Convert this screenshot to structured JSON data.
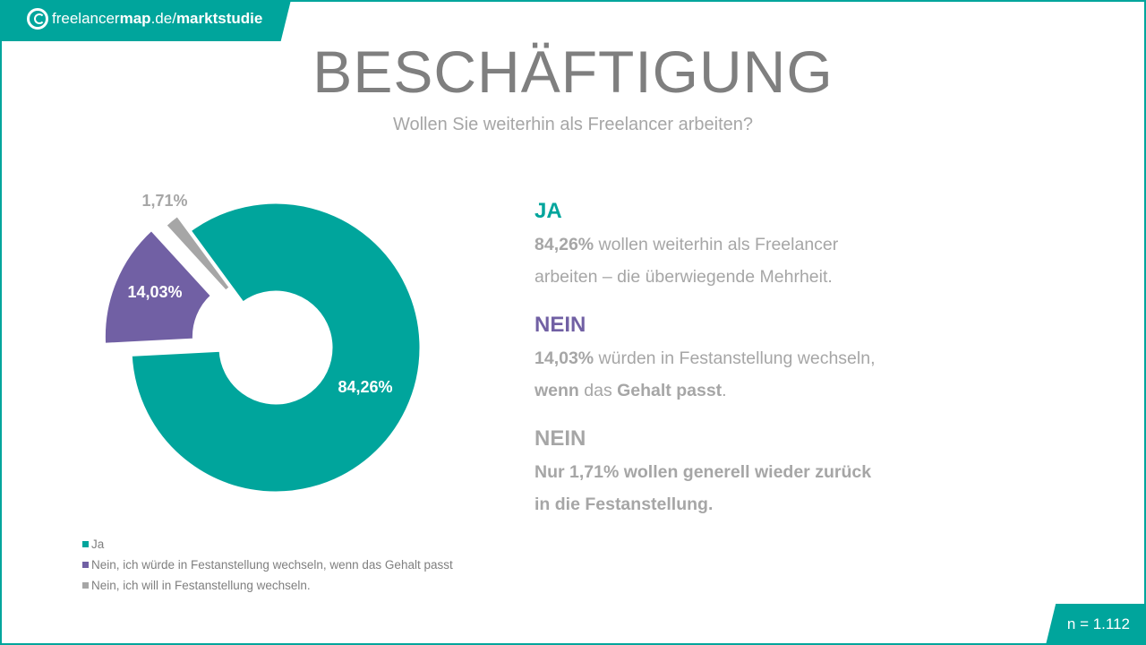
{
  "header": {
    "logo_text_light": "freelancer",
    "logo_text_bold": "map",
    "logo_domain": ".de/",
    "logo_path": "marktstudie"
  },
  "title": "BESCHÄFTIGUNG",
  "subtitle": "Wollen Sie weiterhin als Freelancer arbeiten?",
  "chart_data": {
    "type": "pie",
    "variant": "donut",
    "categories": [
      "Ja",
      "Nein, ich würde in Festanstellung wechseln, wenn das Gehalt passt",
      "Nein, ich will in Festanstellung wechseln."
    ],
    "values": [
      84.26,
      14.03,
      1.71
    ],
    "data_labels": [
      "84,26%",
      "14,03%",
      "1,71%"
    ],
    "colors": [
      "#00a59c",
      "#7160a4",
      "#a6a6a6"
    ],
    "exploded": [
      false,
      true,
      true
    ],
    "legend_position": "bottom-left"
  },
  "explanations": [
    {
      "heading": "JA",
      "color": "#00a59c",
      "lines": [
        [
          {
            "t": "84,26%",
            "b": true
          },
          {
            "t": " wollen weiterhin als Freelancer",
            "b": false
          }
        ],
        [
          {
            "t": "arbeiten – die überwiegende Mehrheit.",
            "b": false
          }
        ]
      ]
    },
    {
      "heading": "NEIN",
      "color": "#7160a4",
      "lines": [
        [
          {
            "t": "14,03%",
            "b": true
          },
          {
            "t": " würden in Festanstellung wechseln,",
            "b": false
          }
        ],
        [
          {
            "t": "wenn",
            "b": true
          },
          {
            "t": " das ",
            "b": false
          },
          {
            "t": "Gehalt passt",
            "b": true
          },
          {
            "t": ".",
            "b": false
          }
        ]
      ]
    },
    {
      "heading": "NEIN",
      "color": "#a6a6a6",
      "lines": [
        [
          {
            "t": "Nur 1,71% wollen generell wieder zurück",
            "b": true
          }
        ],
        [
          {
            "t": "in die Festanstellung.",
            "b": true
          }
        ]
      ]
    }
  ],
  "sample_size": "n = 1.112"
}
